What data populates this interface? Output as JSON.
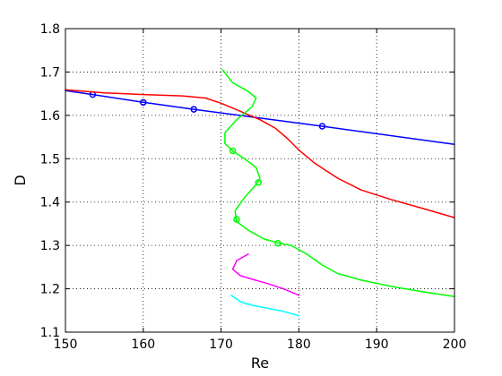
{
  "chart_data": {
    "type": "line",
    "title": "",
    "xlabel": "Re",
    "ylabel": "D",
    "xlim": [
      150,
      200
    ],
    "ylim": [
      1.1,
      1.8
    ],
    "xticks": [
      150,
      160,
      170,
      180,
      190,
      200
    ],
    "yticks": [
      1.1,
      1.2,
      1.3,
      1.4,
      1.5,
      1.6,
      1.7,
      1.8
    ],
    "xtick_labels": [
      "150",
      "160",
      "170",
      "180",
      "190",
      "200"
    ],
    "ytick_labels": [
      "1.1",
      "1.2",
      "1.3",
      "1.4",
      "1.5",
      "1.6",
      "1.7",
      "1.8"
    ],
    "grid": true,
    "series": [
      {
        "color": "#0000ff",
        "points": [
          [
            150,
            1.657
          ],
          [
            153.5,
            1.648
          ],
          [
            160,
            1.63
          ],
          [
            166.5,
            1.614
          ],
          [
            183,
            1.575
          ],
          [
            200,
            1.533
          ]
        ],
        "markers": [
          [
            153.5,
            1.648
          ],
          [
            160,
            1.63
          ],
          [
            166.5,
            1.614
          ],
          [
            183,
            1.575
          ]
        ]
      },
      {
        "color": "#ff0000",
        "points": [
          [
            150,
            1.659
          ],
          [
            155,
            1.652
          ],
          [
            160,
            1.648
          ],
          [
            165,
            1.645
          ],
          [
            168,
            1.64
          ],
          [
            170,
            1.628
          ],
          [
            172,
            1.613
          ],
          [
            175,
            1.59
          ],
          [
            177,
            1.57
          ],
          [
            178.5,
            1.547
          ],
          [
            180,
            1.52
          ],
          [
            182,
            1.49
          ],
          [
            185,
            1.455
          ],
          [
            188,
            1.428
          ],
          [
            192,
            1.405
          ],
          [
            196,
            1.385
          ],
          [
            200,
            1.364
          ]
        ],
        "markers": []
      },
      {
        "color": "#00ff00",
        "points": [
          [
            170.2,
            1.705
          ],
          [
            171.5,
            1.675
          ],
          [
            173.5,
            1.655
          ],
          [
            174.5,
            1.64
          ],
          [
            174,
            1.62
          ],
          [
            172,
            1.59
          ],
          [
            170.5,
            1.56
          ],
          [
            170.5,
            1.535
          ],
          [
            171.5,
            1.518
          ],
          [
            173,
            1.5
          ],
          [
            174.5,
            1.48
          ],
          [
            175,
            1.455
          ],
          [
            174.5,
            1.44
          ],
          [
            173,
            1.41
          ],
          [
            171.8,
            1.38
          ],
          [
            172,
            1.355
          ],
          [
            173.5,
            1.335
          ],
          [
            175.5,
            1.315
          ],
          [
            177.5,
            1.305
          ],
          [
            179,
            1.3
          ],
          [
            181,
            1.28
          ],
          [
            183,
            1.255
          ],
          [
            185,
            1.235
          ],
          [
            188,
            1.22
          ],
          [
            192,
            1.205
          ],
          [
            196,
            1.193
          ],
          [
            200,
            1.182
          ]
        ],
        "markers": [
          [
            171.5,
            1.518
          ],
          [
            174.8,
            1.445
          ],
          [
            172,
            1.36
          ],
          [
            177.3,
            1.305
          ]
        ]
      },
      {
        "color": "#ff00ff",
        "points": [
          [
            173.5,
            1.28
          ],
          [
            172,
            1.265
          ],
          [
            171.5,
            1.245
          ],
          [
            172.5,
            1.23
          ],
          [
            174,
            1.222
          ],
          [
            176,
            1.212
          ],
          [
            178,
            1.2
          ],
          [
            180,
            1.185
          ]
        ],
        "markers": []
      },
      {
        "color": "#00ffff",
        "points": [
          [
            171.3,
            1.185
          ],
          [
            172.5,
            1.17
          ],
          [
            174,
            1.162
          ],
          [
            176,
            1.155
          ],
          [
            178,
            1.148
          ],
          [
            180,
            1.138
          ]
        ],
        "markers": []
      }
    ]
  }
}
